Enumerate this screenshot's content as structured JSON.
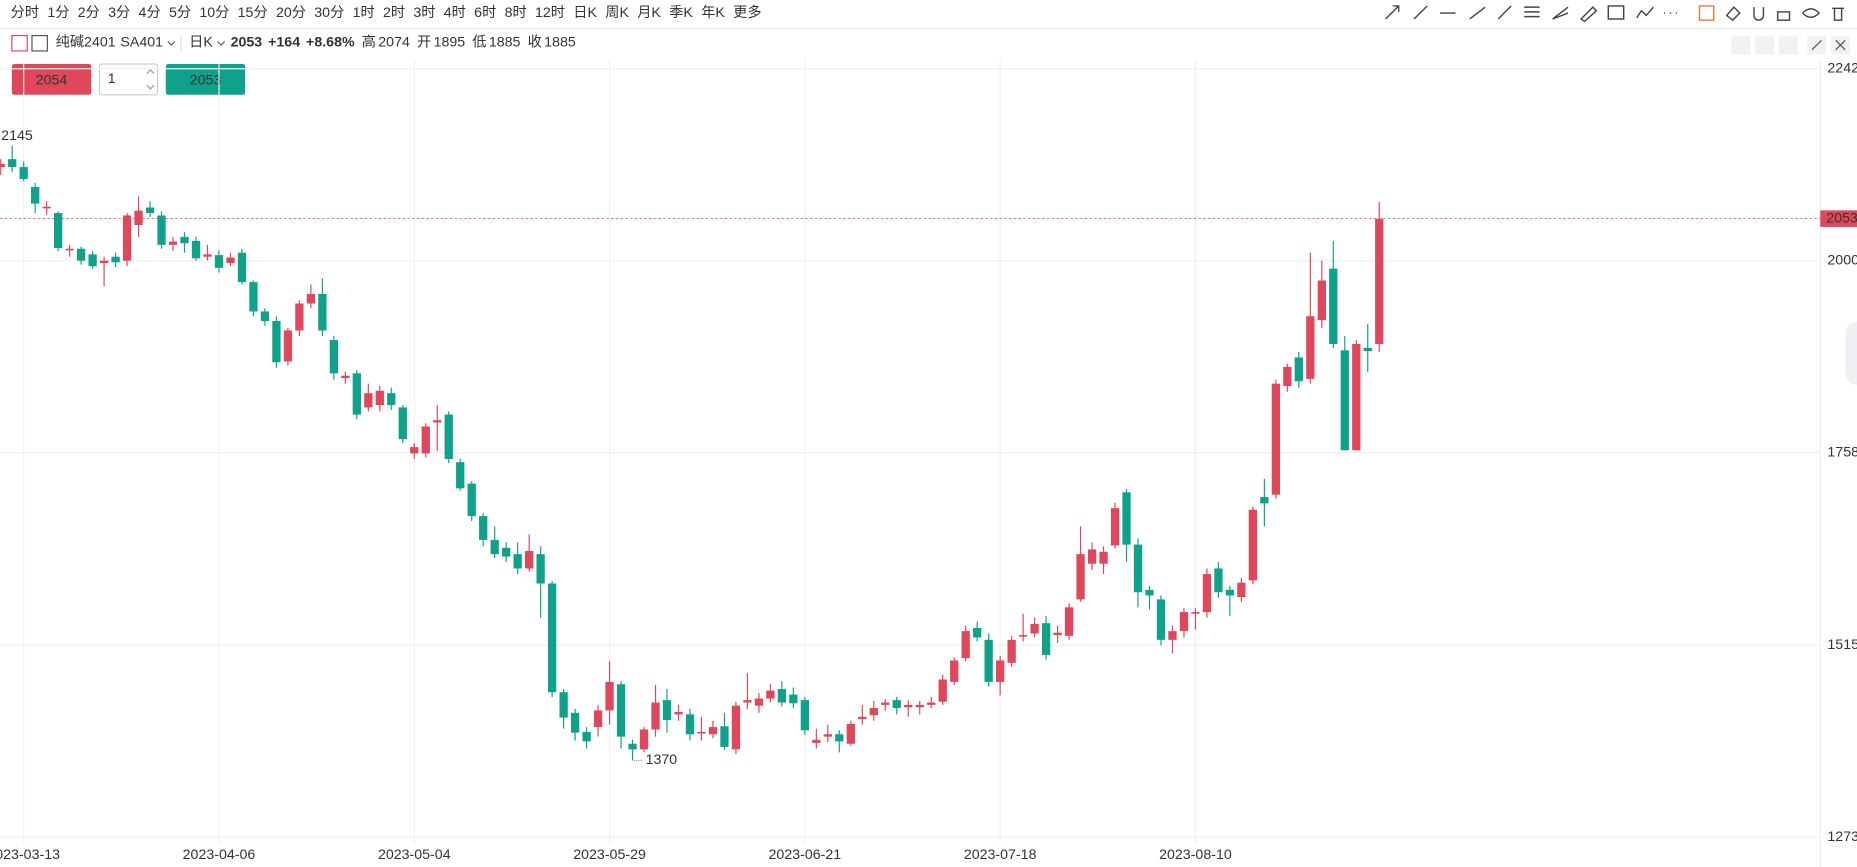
{
  "toolbar": {
    "periods": [
      "分时",
      "1分",
      "2分",
      "3分",
      "4分",
      "5分",
      "10分",
      "15分",
      "20分",
      "30分",
      "1时",
      "2时",
      "3时",
      "4时",
      "6时",
      "8时",
      "12时",
      "日K",
      "周K",
      "月K",
      "季K",
      "年K",
      "更多"
    ],
    "active": "日K"
  },
  "header": {
    "name": "纯碱2401",
    "code": "SA401",
    "period": "日K",
    "last": "2053",
    "change": "+164",
    "change_pct": "+8.68%",
    "stats": [
      {
        "label": "高",
        "value": "2074"
      },
      {
        "label": "开",
        "value": "1895"
      },
      {
        "label": "低",
        "value": "1885"
      },
      {
        "label": "收",
        "value": "1885"
      }
    ]
  },
  "order": {
    "sell": "2054",
    "quantity": "1",
    "buy": "2053"
  },
  "chart_data": {
    "type": "candlestick",
    "up_color": "#e0475a",
    "down_color": "#0fa28a",
    "categories": [
      null,
      null,
      "2023-03-13",
      null,
      null,
      null,
      null,
      null,
      null,
      null,
      null,
      null,
      null,
      null,
      null,
      null,
      null,
      null,
      null,
      "2023-04-06",
      null,
      null,
      null,
      null,
      null,
      null,
      null,
      null,
      null,
      null,
      null,
      null,
      null,
      null,
      null,
      null,
      "2023-05-04",
      null,
      null,
      null,
      null,
      null,
      null,
      null,
      null,
      null,
      null,
      null,
      null,
      null,
      null,
      null,
      null,
      "2023-05-29",
      null,
      null,
      null,
      null,
      null,
      null,
      null,
      null,
      null,
      null,
      null,
      null,
      null,
      null,
      null,
      null,
      "2023-06-21",
      null,
      null,
      null,
      null,
      null,
      null,
      null,
      null,
      null,
      null,
      null,
      null,
      null,
      null,
      null,
      null,
      "2023-07-18",
      null,
      null,
      null,
      null,
      null,
      null,
      null,
      null,
      null,
      null,
      null,
      null,
      null,
      null,
      null,
      null,
      "2023-08-10",
      null,
      null,
      null,
      null,
      null,
      null,
      null,
      null,
      null,
      null,
      null,
      null,
      null,
      null,
      null,
      null
    ],
    "open": [
      2118,
      2128,
      2118,
      2093,
      2066,
      2060,
      2013,
      2015,
      2008,
      1997,
      2005,
      2000,
      2045,
      2067,
      2057,
      2020,
      2030,
      2025,
      2005,
      2007,
      1997,
      2010,
      1973,
      1936,
      1924,
      1873,
      1912,
      1946,
      1958,
      1900,
      1852,
      1858,
      1815,
      1818,
      1833,
      1815,
      1757,
      1757,
      1796,
      1806,
      1746,
      1719,
      1678,
      1648,
      1638,
      1630,
      1612,
      1630,
      1593,
      1456,
      1430,
      1406,
      1412,
      1433,
      1466,
      1391,
      1384,
      1409,
      1446,
      1428,
      1428,
      1404,
      1403,
      1413,
      1384,
      1443,
      1439,
      1448,
      1460,
      1453,
      1446,
      1392,
      1400,
      1403,
      1391,
      1422,
      1427,
      1440,
      1446,
      1437,
      1437,
      1440,
      1444,
      1469,
      1499,
      1537,
      1522,
      1469,
      1493,
      1526,
      1530,
      1543,
      1528,
      1527,
      1573,
      1618,
      1618,
      1641,
      1708,
      1642,
      1585,
      1573,
      1522,
      1533,
      1555,
      1557,
      1612,
      1585,
      1576,
      1597,
      1702,
      1705,
      1842,
      1878,
      1851,
      1925,
      1990,
      1887,
      1761,
      1890,
      1895
    ],
    "high": [
      2128,
      2145,
      2125,
      2098,
      2075,
      2062,
      2020,
      2018,
      2012,
      2005,
      2010,
      2060,
      2081,
      2075,
      2062,
      2030,
      2036,
      2030,
      2020,
      2013,
      2010,
      2015,
      1975,
      1940,
      1930,
      1915,
      1950,
      1970,
      1978,
      1905,
      1860,
      1862,
      1845,
      1842,
      1840,
      1818,
      1770,
      1795,
      1818,
      1810,
      1750,
      1722,
      1682,
      1665,
      1645,
      1645,
      1655,
      1640,
      1596,
      1460,
      1435,
      1412,
      1440,
      1495,
      1470,
      1396,
      1412,
      1465,
      1460,
      1440,
      1435,
      1425,
      1420,
      1430,
      1444,
      1480,
      1455,
      1466,
      1470,
      1462,
      1450,
      1410,
      1415,
      1408,
      1420,
      1440,
      1445,
      1447,
      1450,
      1446,
      1445,
      1450,
      1478,
      1500,
      1540,
      1545,
      1530,
      1502,
      1527,
      1555,
      1550,
      1552,
      1540,
      1568,
      1665,
      1645,
      1640,
      1695,
      1712,
      1650,
      1590,
      1578,
      1540,
      1562,
      1562,
      1612,
      1620,
      1590,
      1600,
      1690,
      1725,
      1850,
      1870,
      1885,
      2010,
      2000,
      2025,
      1905,
      1900,
      1920,
      2074
    ],
    "low": [
      2108,
      2112,
      2100,
      2060,
      2058,
      2012,
      2005,
      1995,
      1990,
      1968,
      1992,
      1993,
      2030,
      2055,
      2015,
      2012,
      2010,
      2000,
      2000,
      1985,
      1993,
      1970,
      1930,
      1918,
      1865,
      1868,
      1905,
      1940,
      1905,
      1850,
      1845,
      1800,
      1810,
      1810,
      1812,
      1770,
      1750,
      1752,
      1760,
      1745,
      1710,
      1672,
      1640,
      1625,
      1620,
      1605,
      1608,
      1550,
      1450,
      1410,
      1395,
      1385,
      1400,
      1415,
      1385,
      1370,
      1380,
      1400,
      1405,
      1420,
      1395,
      1395,
      1398,
      1383,
      1378,
      1435,
      1430,
      1443,
      1438,
      1436,
      1402,
      1385,
      1393,
      1380,
      1388,
      1415,
      1420,
      1432,
      1428,
      1425,
      1428,
      1436,
      1440,
      1465,
      1495,
      1520,
      1463,
      1452,
      1488,
      1520,
      1525,
      1497,
      1518,
      1522,
      1570,
      1610,
      1605,
      1637,
      1620,
      1563,
      1560,
      1515,
      1505,
      1525,
      1535,
      1550,
      1575,
      1552,
      1570,
      1592,
      1665,
      1700,
      1835,
      1840,
      1845,
      1915,
      1890,
      1761,
      1761,
      1860,
      1885
    ],
    "close": [
      2122,
      2118,
      2103,
      2072,
      2068,
      2016,
      2015,
      2000,
      1993,
      2000,
      1998,
      2057,
      2063,
      2060,
      2020,
      2024,
      2022,
      2003,
      2008,
      1991,
      2004,
      1973,
      1936,
      1924,
      1872,
      1912,
      1946,
      1958,
      1912,
      1858,
      1855,
      1806,
      1833,
      1836,
      1818,
      1775,
      1765,
      1791,
      1799,
      1750,
      1713,
      1678,
      1648,
      1630,
      1627,
      1612,
      1634,
      1593,
      1456,
      1424,
      1405,
      1394,
      1433,
      1469,
      1400,
      1384,
      1409,
      1443,
      1421,
      1431,
      1403,
      1406,
      1412,
      1387,
      1439,
      1446,
      1448,
      1458,
      1443,
      1442,
      1408,
      1396,
      1403,
      1394,
      1416,
      1425,
      1436,
      1443,
      1436,
      1440,
      1440,
      1443,
      1472,
      1496,
      1533,
      1525,
      1469,
      1496,
      1522,
      1528,
      1542,
      1503,
      1531,
      1563,
      1630,
      1636,
      1633,
      1688,
      1642,
      1582,
      1578,
      1522,
      1533,
      1557,
      1557,
      1605,
      1582,
      1578,
      1594,
      1686,
      1694,
      1845,
      1866,
      1848,
      1930,
      1975,
      1895,
      1761,
      1895,
      1886,
      2053
    ],
    "ylim": [
      1273,
      2242
    ],
    "yticks": [
      1273,
      1515,
      1758,
      2000,
      2242
    ],
    "last_price": 2053,
    "max_label": 2145,
    "min_label": 1370,
    "grid": true
  }
}
